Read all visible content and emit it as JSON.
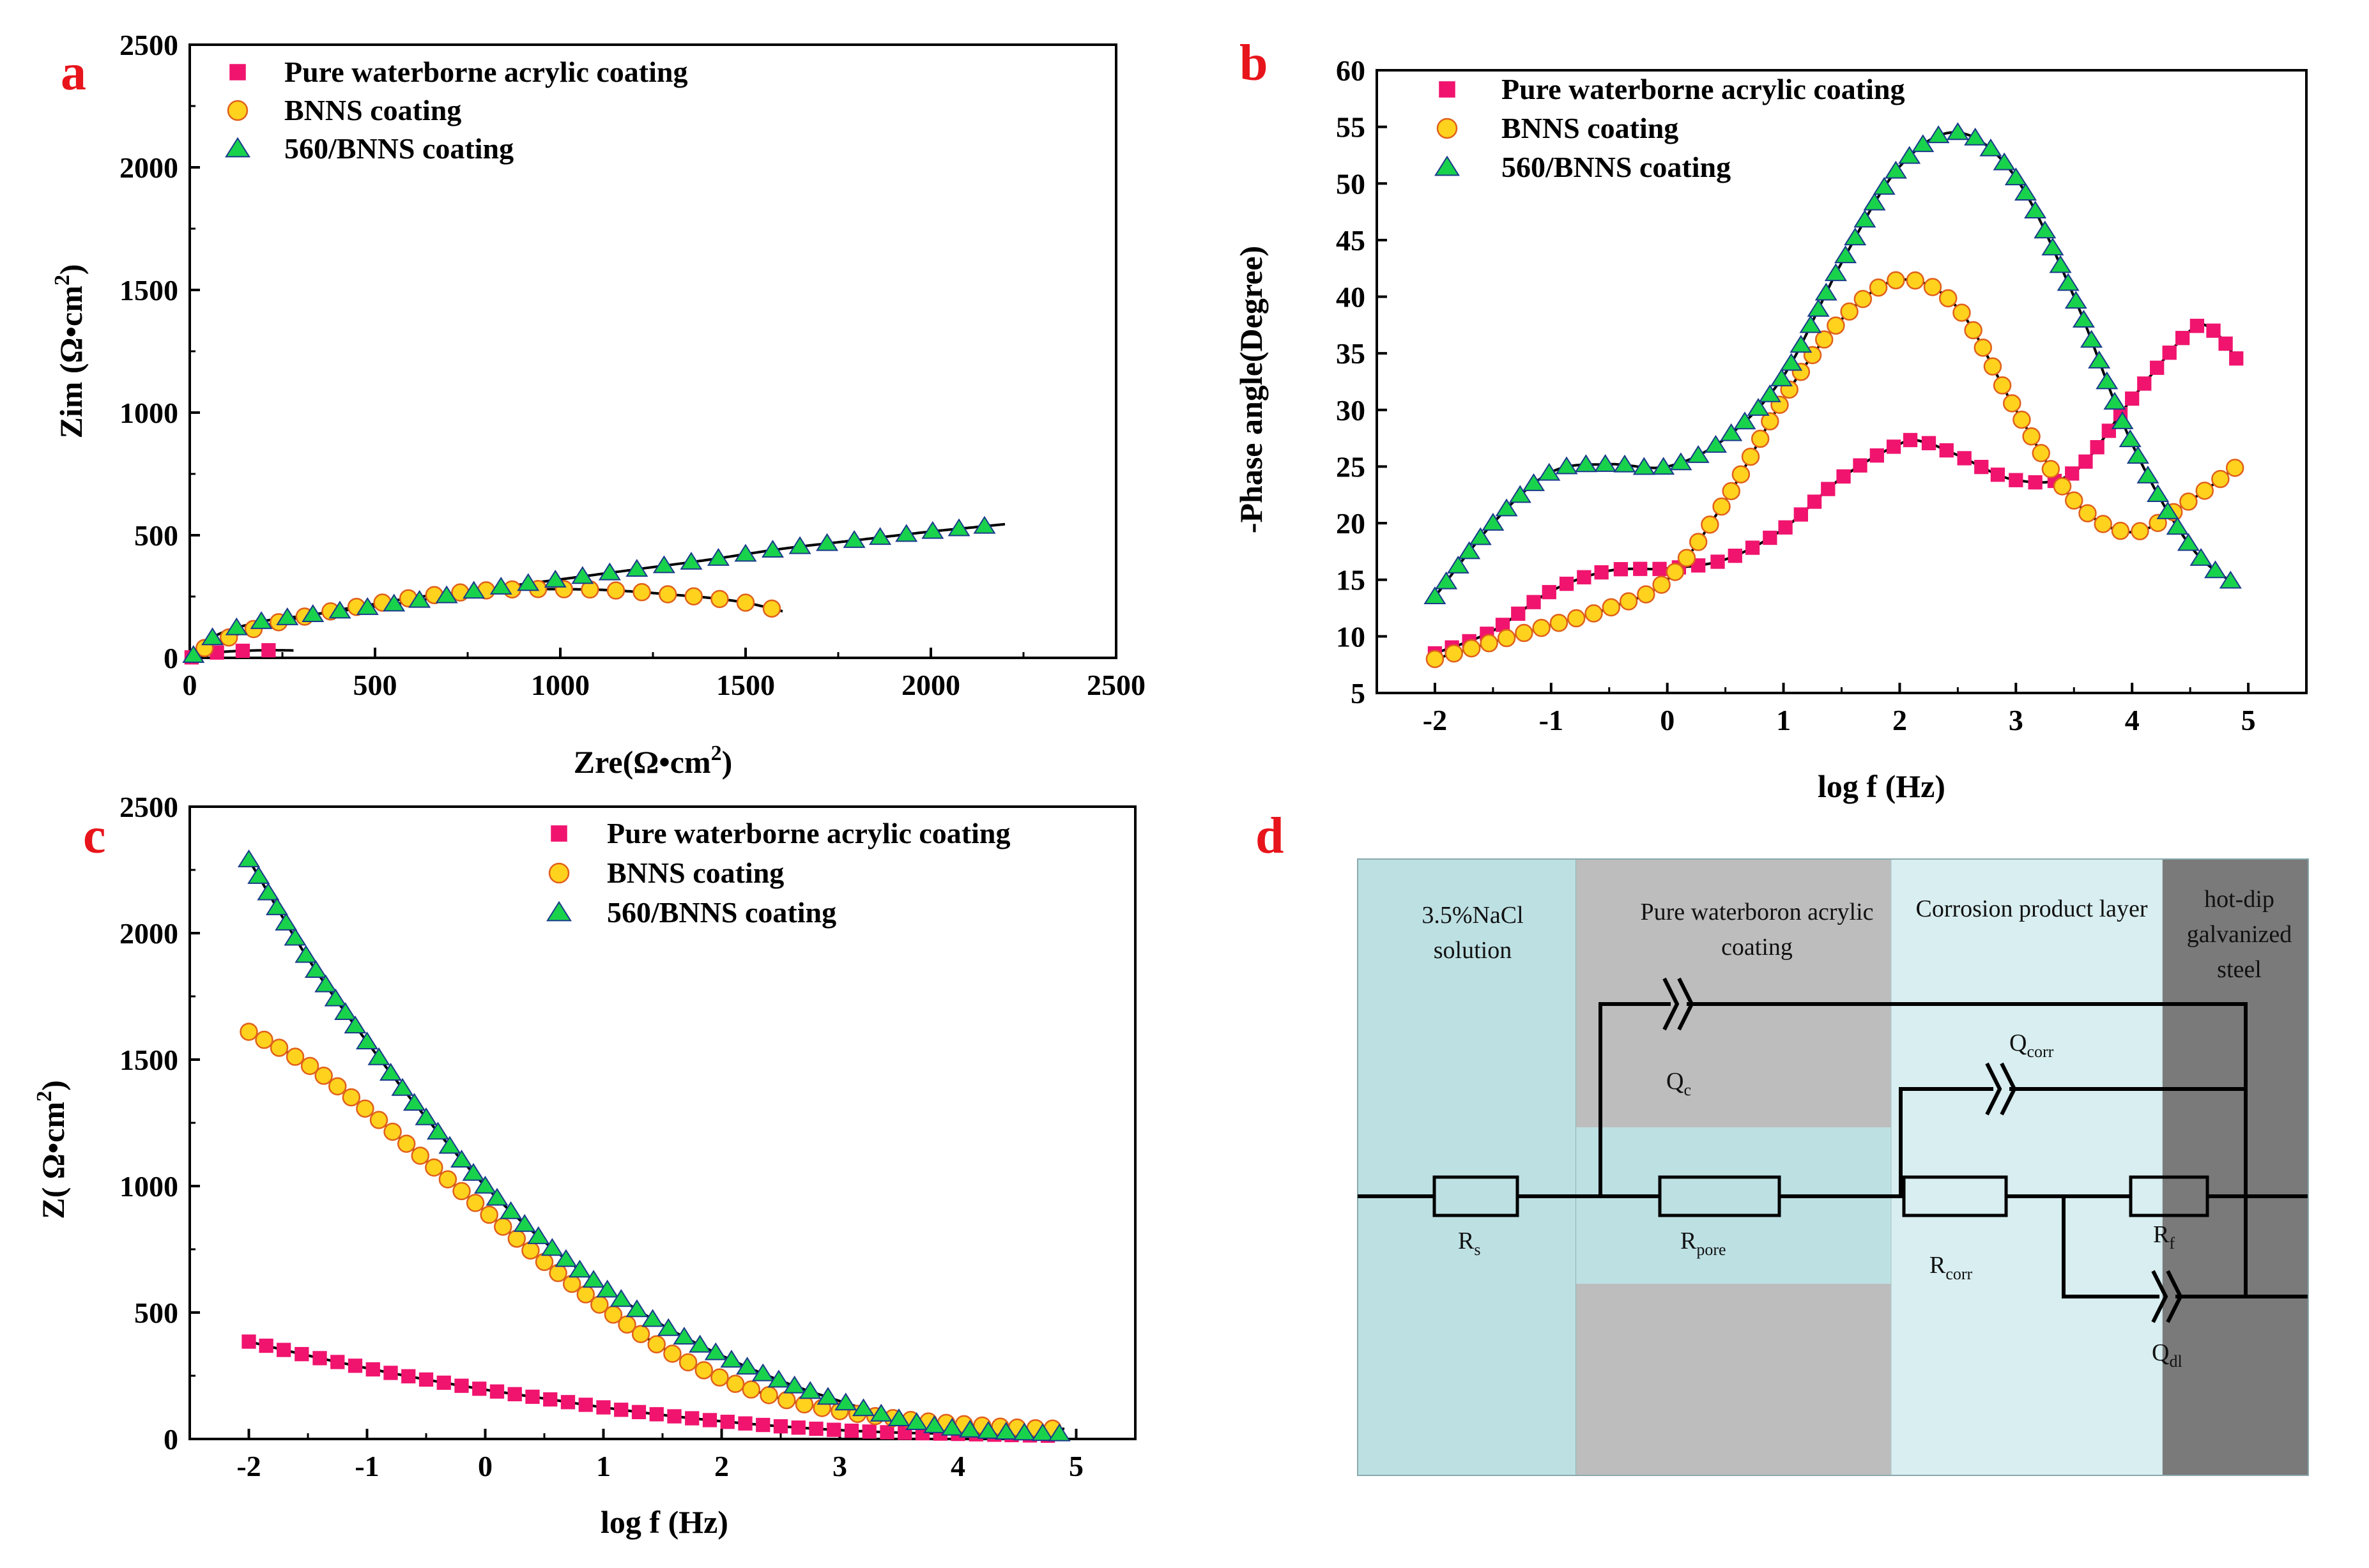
{
  "colors": {
    "pure": "#f0146e",
    "bnns": "#ffd21e",
    "bnns_edge": "#e0601a",
    "bnns560": "#19d24c",
    "bnns560_edge": "#1a3a8a",
    "fit": "#000000",
    "panel_label": "#e8141b",
    "nacl": "#bde0e3",
    "coating": "#bdbdbd",
    "corrosion": "#d8eef0",
    "steel": "#7a7a7a"
  },
  "panel_labels": {
    "a": "a",
    "b": "b",
    "c": "c",
    "d": "d"
  },
  "chart_data": [
    {
      "id": "a",
      "type": "scatter",
      "title": "",
      "xlabel": "Zre(Ω•cm",
      "xlabel_sup": "2",
      "xlabel_tail": ")",
      "ylabel": "Zim (Ω•cm",
      "ylabel_sup": "2",
      "ylabel_tail": ")",
      "xlim": [
        0,
        2500
      ],
      "ylim": [
        0,
        2500
      ],
      "xticks": [
        "0",
        "500",
        "1000",
        "1500",
        "2000",
        "2500"
      ],
      "yticks": [
        "0",
        "500",
        "1000",
        "1500",
        "2000",
        "2500"
      ],
      "legend": [
        "Pure waterborne acrylic coating",
        "BNNS  coating",
        "560/BNNS  coating"
      ],
      "legend_position": "top-left",
      "series": [
        {
          "name": "Pure waterborne acrylic coating",
          "x": [
            5,
            20,
            40,
            65,
            95,
            130,
            170,
            210,
            250,
            280
          ],
          "y": [
            2,
            8,
            14,
            20,
            25,
            28,
            30,
            31,
            31,
            30
          ]
        },
        {
          "name": "BNNS  coating",
          "x": [
            40,
            100,
            200,
            300,
            400,
            500,
            600,
            700,
            800,
            900,
            1000,
            1100,
            1200,
            1300,
            1400,
            1500,
            1600
          ],
          "y": [
            40,
            80,
            130,
            165,
            195,
            220,
            245,
            262,
            275,
            280,
            280,
            278,
            270,
            258,
            245,
            225,
            190
          ]
        },
        {
          "name": "560/BNNS  coating",
          "x": [
            10,
            50,
            100,
            200,
            300,
            400,
            600,
            800,
            1000,
            1200,
            1400,
            1600,
            1800,
            2000,
            2100,
            2200
          ],
          "y": [
            10,
            70,
            110,
            150,
            170,
            190,
            230,
            280,
            320,
            360,
            400,
            445,
            480,
            515,
            530,
            545
          ]
        }
      ]
    },
    {
      "id": "b",
      "type": "scatter",
      "title": "",
      "xlabel": "log f (Hz)",
      "ylabel": "-Phase angle(Degree)",
      "xlim": [
        -2.5,
        5.5
      ],
      "ylim": [
        5,
        60
      ],
      "xticks": [
        "-2",
        "-1",
        "0",
        "1",
        "2",
        "3",
        "4",
        "5"
      ],
      "yticks": [
        "5",
        "10",
        "15",
        "20",
        "25",
        "30",
        "35",
        "40",
        "45",
        "50",
        "55",
        "60"
      ],
      "legend": [
        "Pure waterborne acrylic coating",
        "BNNS coating",
        "560/BNNS coating"
      ],
      "legend_position": "top-left",
      "series": [
        {
          "name": "Pure waterborne acrylic coating",
          "x": [
            -2,
            -1.5,
            -1,
            -0.5,
            0,
            0.5,
            1,
            1.5,
            2,
            2.2,
            2.5,
            3,
            3.5,
            4,
            4.5,
            4.7,
            4.9
          ],
          "y": [
            8.5,
            10.5,
            14,
            15.8,
            16,
            16.8,
            19.5,
            24,
            27,
            27.2,
            26,
            23.8,
            24.5,
            31,
            37,
            37,
            34.5
          ]
        },
        {
          "name": "BNNS coating",
          "x": [
            -2,
            -1.5,
            -1,
            -0.5,
            0,
            0.5,
            1,
            1.5,
            2,
            2.5,
            3,
            3.5,
            4,
            4.5,
            4.9
          ],
          "y": [
            8,
            9.5,
            11,
            12.5,
            15,
            22,
            31,
            38,
            41.5,
            39,
            30,
            22,
            19.2,
            22,
            25
          ]
        },
        {
          "name": "560/BNNS coating",
          "x": [
            -2,
            -1.5,
            -1,
            -0.5,
            0,
            0.5,
            1,
            1.5,
            2,
            2.5,
            3,
            3.5,
            4,
            4.5,
            4.9
          ],
          "y": [
            13.5,
            20,
            24.5,
            25.2,
            25,
            27.5,
            33,
            43,
            51.5,
            54.5,
            50.5,
            40,
            27,
            18,
            14.5
          ]
        }
      ]
    },
    {
      "id": "c",
      "type": "scatter",
      "title": "",
      "xlabel": "log f (Hz)",
      "ylabel": "Z( Ω•cm",
      "ylabel_sup": "2",
      "ylabel_tail": ")",
      "xlim": [
        -2.5,
        5.5
      ],
      "ylim": [
        0,
        2500
      ],
      "xticks": [
        "-2",
        "-1",
        "0",
        "1",
        "2",
        "3",
        "4",
        "5"
      ],
      "yticks": [
        "0",
        "500",
        "1000",
        "1500",
        "2000",
        "2500"
      ],
      "legend": [
        "Pure waterborne acrylic coating",
        "BNNS coating",
        "560/BNNS coating"
      ],
      "legend_position": "top-right",
      "series": [
        {
          "name": "Pure waterborne acrylic coating",
          "x": [
            -2,
            -1.5,
            -1,
            -0.5,
            0,
            0.5,
            1,
            1.5,
            2,
            2.5,
            3,
            3.5,
            4,
            4.5,
            4.9
          ],
          "y": [
            385,
            330,
            280,
            235,
            195,
            160,
            125,
            95,
            70,
            50,
            35,
            25,
            20,
            15,
            12
          ]
        },
        {
          "name": "BNNS coating",
          "x": [
            -2,
            -1.5,
            -1,
            -0.5,
            0,
            0.5,
            1,
            1.5,
            2,
            2.5,
            3,
            3.5,
            4,
            4.5,
            4.9
          ],
          "y": [
            1610,
            1480,
            1300,
            1100,
            900,
            700,
            520,
            360,
            240,
            160,
            110,
            80,
            60,
            45,
            40
          ]
        },
        {
          "name": "560/BNNS coating",
          "x": [
            -2,
            -1.5,
            -1,
            -0.5,
            0,
            0.5,
            1,
            1.5,
            2,
            2.5,
            3,
            3.5,
            4,
            4.5,
            4.9
          ],
          "y": [
            2290,
            1900,
            1570,
            1270,
            1000,
            780,
            600,
            450,
            330,
            230,
            150,
            80,
            40,
            25,
            20
          ]
        }
      ]
    }
  ],
  "circuit": {
    "regions": {
      "nacl": "3.5%NaCl",
      "nacl_2": "solution",
      "coating": "Pure waterboron acrylic",
      "coating_2": "coating",
      "corrosion": "Corrosion product layer",
      "steel": "hot-dip",
      "steel_2": "galvanized",
      "steel_3": "steel"
    },
    "elements": {
      "rs": "R",
      "rs_sub": "s",
      "rpore": "R",
      "rpore_sub": "pore",
      "rcorr": "R",
      "rcorr_sub": "corr",
      "rf": "R",
      "rf_sub": "f",
      "qc": "Q",
      "qc_sub": "c",
      "qcorr": "Q",
      "qcorr_sub": "corr",
      "qdl": "Q",
      "qdl_sub": "dl"
    }
  }
}
